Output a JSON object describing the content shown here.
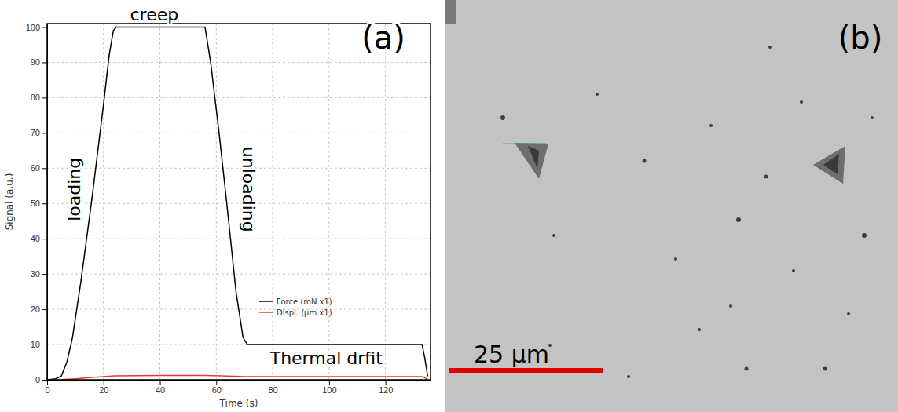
{
  "chart_data": {
    "type": "line",
    "panel_label": "(a)",
    "x_label": "Time (s)",
    "y_label": "Signal (a.u.)",
    "xlim": [
      0,
      136
    ],
    "ylim": [
      0,
      101
    ],
    "xticks": [
      0,
      20,
      40,
      60,
      80,
      100,
      120
    ],
    "yticks": [
      0,
      10,
      20,
      30,
      40,
      50,
      60,
      70,
      80,
      90,
      100
    ],
    "grid": true,
    "legend": "center",
    "series": [
      {
        "name": "Force (mN x1)",
        "color": "#000000",
        "x": [
          0,
          3,
          5,
          7,
          9,
          12,
          16,
          20,
          22,
          23.5,
          24.5,
          56,
          58,
          61,
          64,
          67,
          69.5,
          71,
          133,
          134,
          135
        ],
        "values": [
          0,
          0.3,
          1,
          5,
          12,
          28,
          52,
          78,
          92,
          99,
          100,
          100,
          90,
          70,
          48,
          25,
          12,
          10,
          10,
          6,
          1
        ]
      },
      {
        "name": "Displ. (µm x1)",
        "color": "#e8392b",
        "x": [
          0,
          5,
          10,
          15,
          20,
          24,
          40,
          56,
          62,
          70,
          100,
          133,
          135
        ],
        "values": [
          0,
          0.05,
          0.3,
          0.6,
          0.9,
          1.1,
          1.2,
          1.25,
          1.1,
          0.9,
          0.9,
          0.9,
          0.2
        ]
      }
    ],
    "annotations": [
      {
        "text": "loading",
        "x": 10,
        "y": 54
      },
      {
        "text": "creep",
        "x": 38,
        "y": 101.8
      },
      {
        "text": "unloading",
        "x": 71,
        "y": 54
      },
      {
        "text": "Thermal drfit",
        "x": 99,
        "y": 5.8
      }
    ]
  },
  "image_panel": {
    "panel_label": "(b)",
    "scale_bar_label": "25 μm"
  }
}
